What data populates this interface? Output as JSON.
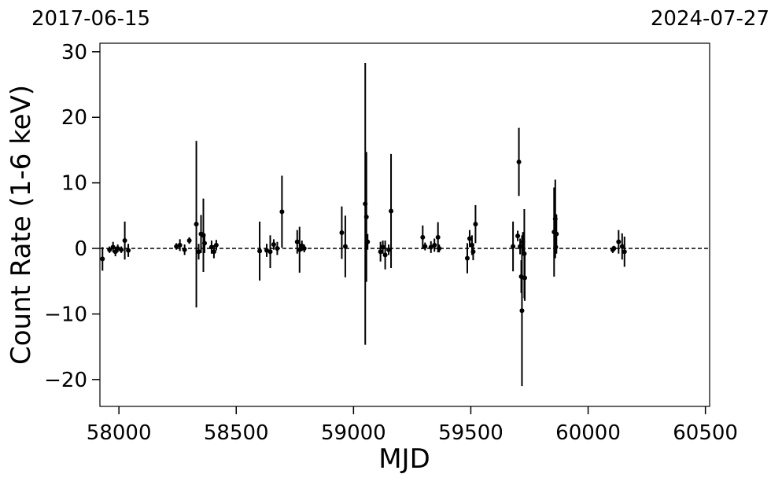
{
  "chart_data": {
    "type": "errorbar-scatter",
    "top_labels": [
      "2017-06-15",
      "2024-07-27"
    ],
    "x_label": "MJD",
    "y_label": "Count Rate (1-6 keV)",
    "xlim": [
      57919,
      60518
    ],
    "ylim": [
      -24.1,
      31.3
    ],
    "xticks": [
      58000,
      58500,
      59000,
      59500,
      60000,
      60500
    ],
    "yticks": [
      {
        "value": -20,
        "label": "−20"
      },
      {
        "value": -10,
        "label": "−10"
      },
      0,
      10,
      20,
      30
    ],
    "hline": 0,
    "color": "#000000",
    "x": [
      57930,
      57960,
      57975,
      57985,
      57995,
      58010,
      58025,
      58040,
      58245,
      58260,
      58280,
      58300,
      58330,
      58340,
      58350,
      58360,
      58365,
      58395,
      58405,
      58415,
      58600,
      58630,
      58645,
      58660,
      58675,
      58695,
      58760,
      58770,
      58780,
      58790,
      58950,
      58965,
      59050,
      59055,
      59060,
      59115,
      59125,
      59135,
      59150,
      59160,
      59295,
      59305,
      59330,
      59345,
      59360,
      59365,
      59485,
      59495,
      59505,
      59510,
      59520,
      59680,
      59700,
      59705,
      59710,
      59715,
      59718,
      59722,
      59728,
      59730,
      59855,
      59860,
      59862,
      59865,
      60105,
      60110,
      60130,
      60145,
      60155
    ],
    "values": [
      -1.6,
      -0.2,
      0.2,
      -0.5,
      0.0,
      -0.2,
      1.2,
      -0.3,
      0.3,
      0.5,
      -0.2,
      1.2,
      3.7,
      -0.5,
      2.2,
      2.0,
      0.8,
      0.2,
      -0.5,
      0.5,
      -0.4,
      -0.3,
      -0.5,
      0.6,
      0.0,
      5.6,
      1.0,
      -0.2,
      0.4,
      0.0,
      2.4,
      0.3,
      6.8,
      4.8,
      1.0,
      -0.5,
      0.2,
      -1.0,
      -0.2,
      5.7,
      1.7,
      0.3,
      0.2,
      0.5,
      1.7,
      0.0,
      -1.5,
      1.5,
      0.5,
      -0.5,
      3.7,
      0.3,
      1.9,
      13.2,
      0.3,
      -4.3,
      -9.5,
      1.0,
      -0.8,
      -4.5,
      2.5,
      4.5,
      0.2,
      2.2,
      -0.2,
      0.0,
      1.0,
      0.3,
      -0.5
    ],
    "errors": [
      1.8,
      0.5,
      0.8,
      0.7,
      0.6,
      0.5,
      2.9,
      1.0,
      0.5,
      0.9,
      0.8,
      0.5,
      12.7,
      1.2,
      2.9,
      5.6,
      1.5,
      1.0,
      1.0,
      0.8,
      4.5,
      1.0,
      2.5,
      0.8,
      1.0,
      5.5,
      1.8,
      3.5,
      0.8,
      0.6,
      4.0,
      4.7,
      21.5,
      9.9,
      1.2,
      1.5,
      1.0,
      2.2,
      0.8,
      8.7,
      1.8,
      0.6,
      0.9,
      1.0,
      2.3,
      0.6,
      2.3,
      1.3,
      1.5,
      1.3,
      2.9,
      3.8,
      0.8,
      5.2,
      1.2,
      2.5,
      11.5,
      1.5,
      6.8,
      3.5,
      6.8,
      6.0,
      0.8,
      3.0,
      0.5,
      0.4,
      1.8,
      2.0,
      2.3
    ]
  }
}
